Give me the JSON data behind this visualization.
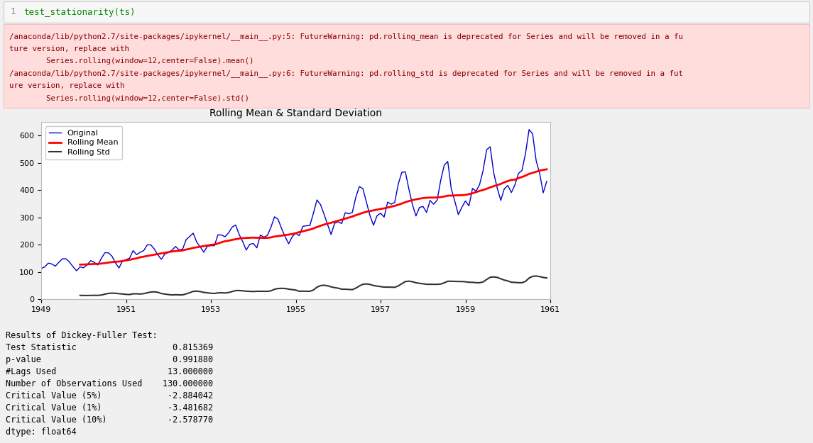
{
  "title": "Rolling Mean & Standard Deviation",
  "code_line": "test_stationarity(ts)",
  "legend_labels": [
    "Original",
    "Rolling Mean",
    "Rolling Std"
  ],
  "original_color": "#0000cc",
  "rolling_mean_color": "#ff0000",
  "rolling_std_color": "#333333",
  "bg_color": "#ffffff",
  "warning_bg": "#ffdddd",
  "warning_border": "#ffbbbb",
  "code_bg": "#f7f7f7",
  "outer_bg": "#f0f0f0",
  "xlim_start": 1949,
  "xlim_end": 1961,
  "ylim_bottom": 0,
  "ylim_top": 650,
  "yticks": [
    0,
    100,
    200,
    300,
    400,
    500,
    600
  ],
  "xticks": [
    1949,
    1951,
    1953,
    1955,
    1957,
    1959,
    1961
  ],
  "airline_data": [
    112,
    118,
    132,
    129,
    121,
    135,
    148,
    148,
    136,
    119,
    104,
    118,
    115,
    126,
    141,
    135,
    125,
    149,
    170,
    170,
    158,
    133,
    114,
    140,
    145,
    150,
    178,
    163,
    172,
    178,
    199,
    199,
    184,
    162,
    146,
    166,
    171,
    180,
    193,
    181,
    183,
    218,
    230,
    242,
    209,
    191,
    172,
    194,
    196,
    196,
    236,
    235,
    229,
    243,
    264,
    272,
    237,
    211,
    180,
    201,
    204,
    188,
    235,
    227,
    234,
    264,
    302,
    293,
    259,
    229,
    203,
    229,
    242,
    233,
    267,
    269,
    270,
    315,
    364,
    347,
    312,
    274,
    237,
    278,
    284,
    277,
    317,
    313,
    318,
    374,
    413,
    405,
    355,
    306,
    271,
    306,
    315,
    301,
    356,
    348,
    355,
    422,
    465,
    467,
    404,
    347,
    305,
    336,
    340,
    318,
    362,
    348,
    363,
    435,
    491,
    505,
    404,
    359,
    310,
    337,
    360,
    342,
    406,
    396,
    420,
    472,
    548,
    559,
    463,
    407,
    362,
    405,
    417,
    391,
    419,
    461,
    472,
    535,
    622,
    606,
    508,
    461,
    390,
    432
  ],
  "warn_lines": [
    "/anaconda/lib/python2.7/site-packages/ipykernel/__main__.py:5: FutureWarning: pd.rolling_mean is deprecated for Series and will be removed in a fu",
    "ture version, replace with",
    "        Series.rolling(window=12,center=False).mean()",
    "/anaconda/lib/python2.7/site-packages/ipykernel/__main__.py:6: FutureWarning: pd.rolling_std is deprecated for Series and will be removed in a fut",
    "ure version, replace with",
    "        Series.rolling(window=12,center=False).std()"
  ],
  "df_lines": [
    "Results of Dickey-Fuller Test:",
    "Test Statistic                   0.815369",
    "p-value                          0.991880",
    "#Lags Used                      13.000000",
    "Number of Observations Used    130.000000",
    "Critical Value (5%)             -2.884042",
    "Critical Value (1%)             -3.481682",
    "Critical Value (10%)            -2.578770",
    "dtype: float64"
  ]
}
